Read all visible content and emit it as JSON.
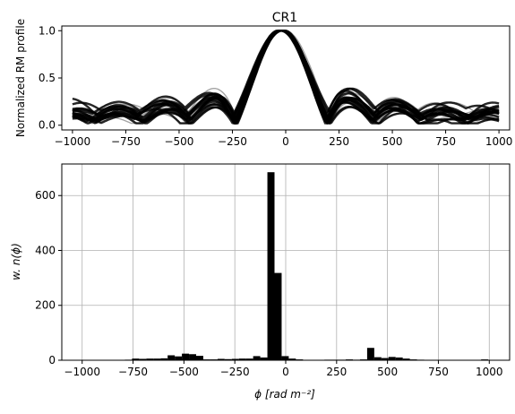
{
  "chart_data": [
    {
      "type": "line",
      "title": "CR1",
      "xlabel": "",
      "ylabel": "Normalized RM profile",
      "xlim": [
        -1050,
        1050
      ],
      "ylim": [
        -0.05,
        1.05
      ],
      "xticks": [
        -1000,
        -750,
        -500,
        -250,
        0,
        250,
        500,
        750,
        1000
      ],
      "xtick_labels": [
        "−1000",
        "−750",
        "−500",
        "−250",
        "0",
        "250",
        "500",
        "750",
        "1000"
      ],
      "yticks": [
        0.0,
        0.5,
        1.0
      ],
      "ytick_labels": [
        "0.0",
        "0.5",
        "1.0"
      ],
      "grid": false,
      "peak_center": -20,
      "n_curves": 24,
      "colors": {
        "thin": "#9a9a9a",
        "thick": "#000000"
      }
    },
    {
      "type": "bar",
      "xlabel": "ϕ [rad m⁻²]",
      "ylabel": "w. n(ϕ)",
      "xlim": [
        -1100,
        1100
      ],
      "ylim": [
        0,
        715
      ],
      "xticks": [
        -1000,
        -750,
        -500,
        -250,
        0,
        250,
        500,
        750,
        1000
      ],
      "xtick_labels": [
        "−1000",
        "−750",
        "−500",
        "−250",
        "0",
        "250",
        "500",
        "750",
        "1000"
      ],
      "yticks": [
        0,
        200,
        400,
        600
      ],
      "ytick_labels": [
        "0",
        "200",
        "400",
        "600"
      ],
      "grid": true,
      "bin_width": 35,
      "bin_left_edges": [
        -1000,
        -965,
        -930,
        -895,
        -860,
        -825,
        -790,
        -755,
        -720,
        -685,
        -650,
        -615,
        -580,
        -545,
        -510,
        -475,
        -440,
        -405,
        -370,
        -335,
        -300,
        -265,
        -230,
        -195,
        -160,
        -125,
        -90,
        -55,
        -20,
        15,
        50,
        85,
        120,
        155,
        190,
        225,
        260,
        295,
        330,
        365,
        400,
        435,
        470,
        505,
        540,
        575,
        610,
        645,
        680,
        715,
        750,
        785,
        820,
        855,
        890,
        925,
        960
      ],
      "values": [
        1,
        1,
        1,
        1,
        1,
        1,
        2,
        6,
        5,
        6,
        6,
        7,
        18,
        14,
        24,
        22,
        16,
        3,
        3,
        5,
        4,
        5,
        6,
        6,
        15,
        10,
        685,
        318,
        15,
        6,
        3,
        1,
        1,
        1,
        2,
        2,
        2,
        3,
        2,
        3,
        45,
        11,
        8,
        12,
        10,
        6,
        3,
        2,
        1,
        1,
        1,
        1,
        1,
        1,
        1,
        1,
        3
      ],
      "bar_color": "#000000"
    }
  ]
}
